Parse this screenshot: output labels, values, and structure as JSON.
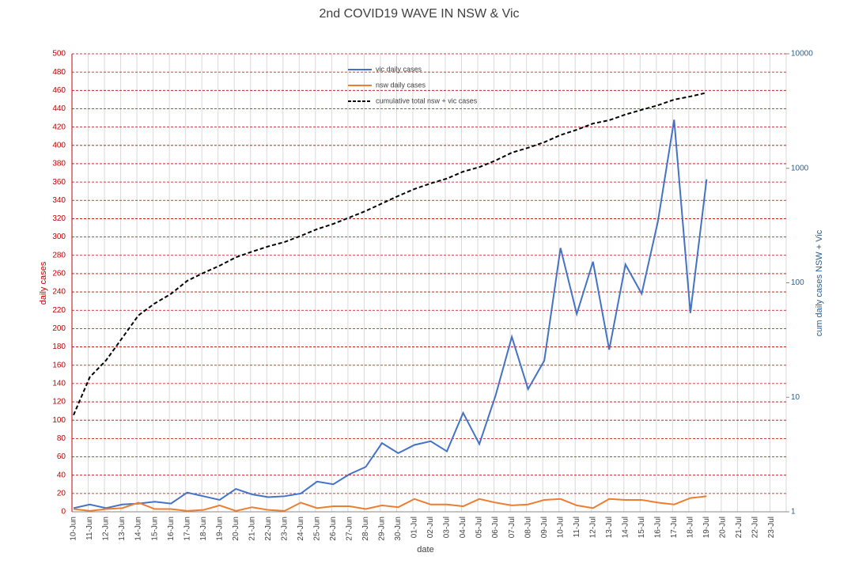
{
  "chart_data": {
    "type": "line",
    "title": "2nd COVID19 WAVE IN NSW & Vic",
    "x_label": "date",
    "y_label": "daily cases",
    "y2_label": "cum daily cases NSW + Vic",
    "categories": [
      "10-Jun",
      "11-Jun",
      "12-Jun",
      "13-Jun",
      "14-Jun",
      "15-Jun",
      "16-Jun",
      "17-Jun",
      "18-Jun",
      "19-Jun",
      "20-Jun",
      "21-Jun",
      "22-Jun",
      "23-Jun",
      "24-Jun",
      "25-Jun",
      "26-Jun",
      "27-Jun",
      "28-Jun",
      "29-Jun",
      "30-Jun",
      "01-Jul",
      "02-Jul",
      "03-Jul",
      "04-Jul",
      "05-Jul",
      "06-Jul",
      "07-Jul",
      "08-Jul",
      "09-Jul",
      "10-Jul",
      "11-Jul",
      "12-Jul",
      "13-Jul",
      "14-Jul",
      "15-Jul",
      "16-Jul",
      "17-Jul",
      "18-Jul",
      "19-Jul",
      "20-Jul",
      "21-Jul",
      "22-Jul",
      "23-Jul"
    ],
    "series": [
      {
        "name": "vic daily cases",
        "color": "#4472c4",
        "axis": "y",
        "values": [
          4,
          8,
          4,
          8,
          9,
          11,
          9,
          21,
          17,
          13,
          25,
          19,
          16,
          17,
          20,
          33,
          30,
          41,
          49,
          75,
          64,
          73,
          77,
          66,
          108,
          74,
          127,
          191,
          134,
          165,
          288,
          216,
          273,
          177,
          270,
          238,
          317,
          428,
          217,
          363,
          null,
          null,
          null,
          null
        ]
      },
      {
        "name": "nsw daily cases",
        "color": "#ed7d31",
        "axis": "y",
        "values": [
          3,
          1,
          3,
          4,
          10,
          3,
          3,
          1,
          2,
          7,
          1,
          5,
          2,
          1,
          10,
          4,
          6,
          6,
          3,
          7,
          5,
          14,
          8,
          8,
          6,
          14,
          10,
          7,
          8,
          13,
          14,
          7,
          4,
          14,
          13,
          13,
          10,
          8,
          15,
          17,
          null,
          null,
          null,
          null
        ]
      },
      {
        "name": "cumulative total nsw + vic cases",
        "color": "#000000",
        "dashed": true,
        "axis": "y2",
        "values": [
          7,
          15,
          21,
          33,
          52,
          66,
          80,
          104,
          122,
          141,
          167,
          187,
          208,
          227,
          257,
          294,
          327,
          372,
          424,
          493,
          573,
          659,
          738,
          813,
          935,
          1024,
          1170,
          1370,
          1510,
          1690,
          1950,
          2170,
          2460,
          2630,
          2950,
          3240,
          3550,
          3980,
          4240,
          4570,
          null,
          null,
          null,
          null
        ]
      }
    ],
    "ylim": [
      0,
      500
    ],
    "yticks": [
      0,
      20,
      40,
      60,
      80,
      100,
      120,
      140,
      160,
      180,
      200,
      220,
      240,
      260,
      280,
      300,
      320,
      340,
      360,
      380,
      400,
      420,
      440,
      460,
      480,
      500
    ],
    "y2lim": [
      1,
      10000
    ],
    "y2ticks": [
      1,
      10,
      100,
      1000,
      10000
    ],
    "y2_log": true,
    "grid": true,
    "y_color": "#c00000",
    "y2_color": "#2e5c8a"
  }
}
